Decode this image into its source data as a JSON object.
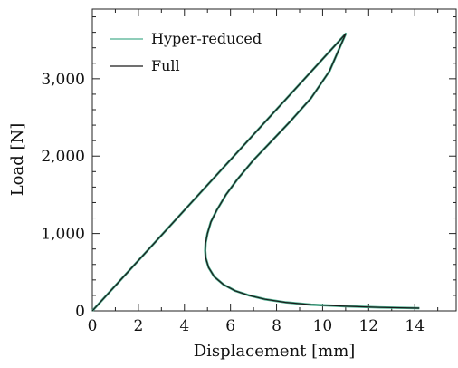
{
  "chart_data": {
    "type": "line",
    "title": "",
    "xlabel": "Displacement [mm]",
    "ylabel": "Load [N]",
    "xlim": [
      0,
      15.8
    ],
    "ylim": [
      0,
      3900
    ],
    "x_ticks": [
      0,
      2,
      4,
      6,
      8,
      10,
      12,
      14
    ],
    "x_tick_labels": [
      "0",
      "2",
      "4",
      "6",
      "8",
      "10",
      "12",
      "14"
    ],
    "y_ticks": [
      0,
      1000,
      2000,
      3000
    ],
    "y_tick_labels": [
      "0",
      "1,000",
      "2,000",
      "3,000"
    ],
    "grid": false,
    "legend_position": "top-left",
    "series": [
      {
        "name": "Hyper-reduced",
        "color": "#4caf8f",
        "x": [
          0,
          11.0,
          10.3,
          9.5,
          8.6,
          7.8,
          7.0,
          6.3,
          5.8,
          5.4,
          5.15,
          5.0,
          4.92,
          4.9,
          4.93,
          5.05,
          5.3,
          5.7,
          6.2,
          6.8,
          7.5,
          8.4,
          9.5,
          11.0,
          12.5,
          14.2
        ],
        "y": [
          0,
          3580,
          3100,
          2750,
          2450,
          2200,
          1950,
          1700,
          1500,
          1300,
          1150,
          1000,
          880,
          780,
          680,
          560,
          440,
          340,
          260,
          200,
          150,
          110,
          80,
          60,
          45,
          35
        ]
      },
      {
        "name": "Full",
        "color": "#1a1a1a",
        "x": [
          0,
          11.0,
          10.3,
          9.5,
          8.6,
          7.8,
          7.0,
          6.3,
          5.8,
          5.4,
          5.15,
          5.0,
          4.92,
          4.9,
          4.93,
          5.05,
          5.3,
          5.7,
          6.2,
          6.8,
          7.5,
          8.4,
          9.5,
          11.0,
          12.5,
          14.2
        ],
        "y": [
          0,
          3580,
          3100,
          2750,
          2450,
          2200,
          1950,
          1700,
          1500,
          1300,
          1150,
          1000,
          880,
          780,
          680,
          560,
          440,
          340,
          260,
          200,
          150,
          110,
          80,
          60,
          45,
          35
        ]
      }
    ]
  }
}
